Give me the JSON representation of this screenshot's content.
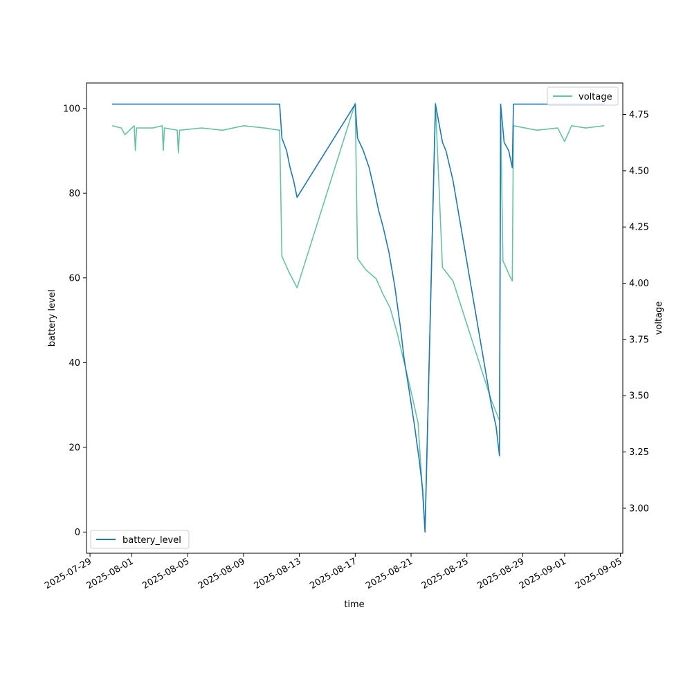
{
  "chart_data": {
    "type": "line",
    "xlabel": "time",
    "ylabel_left": "battery level",
    "ylabel_right": "voltage",
    "xlim": [
      "2025-07-28T18:00",
      "2025-09-05T04:00"
    ],
    "ylim_left": [
      -5,
      106
    ],
    "ylim_right": [
      2.8,
      4.89
    ],
    "x_ticks": [
      "2025-07-29",
      "2025-08-01",
      "2025-08-05",
      "2025-08-09",
      "2025-08-13",
      "2025-08-17",
      "2025-08-21",
      "2025-08-25",
      "2025-08-29",
      "2025-09-01",
      "2025-09-05"
    ],
    "y_ticks_left": [
      0,
      20,
      40,
      60,
      80,
      100
    ],
    "y_ticks_right": [
      "3.00",
      "3.25",
      "3.50",
      "3.75",
      "4.00",
      "4.25",
      "4.50",
      "4.75"
    ],
    "legend_left": {
      "label": "battery_level",
      "placement": "lower left"
    },
    "legend_right": {
      "label": "voltage",
      "placement": "upper right"
    },
    "colors": {
      "battery_level": "#1f77b4",
      "voltage": "#66c2a5"
    },
    "series": [
      {
        "name": "battery_level",
        "axis": "left",
        "points": [
          [
            "2025-07-30T14:00",
            101
          ],
          [
            "2025-08-11T14:00",
            101
          ],
          [
            "2025-08-11T18:00",
            93
          ],
          [
            "2025-08-12T02:00",
            90
          ],
          [
            "2025-08-12T08:00",
            86
          ],
          [
            "2025-08-12T14:00",
            83
          ],
          [
            "2025-08-12T20:00",
            79
          ],
          [
            "2025-08-17T00:00",
            101
          ],
          [
            "2025-08-17T04:00",
            93
          ],
          [
            "2025-08-17T14:00",
            90
          ],
          [
            "2025-08-18T00:00",
            86
          ],
          [
            "2025-08-18T10:00",
            80
          ],
          [
            "2025-08-18T16:00",
            76
          ],
          [
            "2025-08-19T00:00",
            72
          ],
          [
            "2025-08-19T10:00",
            66
          ],
          [
            "2025-08-19T20:00",
            58
          ],
          [
            "2025-08-20T06:00",
            48
          ],
          [
            "2025-08-20T12:00",
            41
          ],
          [
            "2025-08-20T20:00",
            34
          ],
          [
            "2025-08-21T06:00",
            25
          ],
          [
            "2025-08-21T14:00",
            17
          ],
          [
            "2025-08-21T20:00",
            10
          ],
          [
            "2025-08-22T00:00",
            0
          ],
          [
            "2025-08-22T18:00",
            101
          ],
          [
            "2025-08-23T06:00",
            92
          ],
          [
            "2025-08-23T12:00",
            90
          ],
          [
            "2025-08-24T00:00",
            83
          ],
          [
            "2025-08-26T18:00",
            30
          ],
          [
            "2025-08-27T02:00",
            25
          ],
          [
            "2025-08-27T08:00",
            18
          ],
          [
            "2025-08-27T10:00",
            101
          ],
          [
            "2025-08-27T16:00",
            92
          ],
          [
            "2025-08-28T00:00",
            90
          ],
          [
            "2025-08-28T06:00",
            86
          ],
          [
            "2025-08-28T08:00",
            101
          ],
          [
            "2025-09-03T20:00",
            101
          ]
        ]
      },
      {
        "name": "voltage",
        "axis": "right",
        "points": [
          [
            "2025-07-30T14:00",
            4.7
          ],
          [
            "2025-07-31T06:00",
            4.69
          ],
          [
            "2025-07-31T12:00",
            4.66
          ],
          [
            "2025-08-01T04:00",
            4.7
          ],
          [
            "2025-08-01T06:00",
            4.59
          ],
          [
            "2025-08-01T08:00",
            4.69
          ],
          [
            "2025-08-02T12:00",
            4.69
          ],
          [
            "2025-08-03T04:00",
            4.7
          ],
          [
            "2025-08-03T06:00",
            4.59
          ],
          [
            "2025-08-03T08:00",
            4.69
          ],
          [
            "2025-08-04T06:00",
            4.68
          ],
          [
            "2025-08-04T08:00",
            4.58
          ],
          [
            "2025-08-04T10:00",
            4.68
          ],
          [
            "2025-08-06T00:00",
            4.69
          ],
          [
            "2025-08-07T12:00",
            4.68
          ],
          [
            "2025-08-09T00:00",
            4.7
          ],
          [
            "2025-08-10T12:00",
            4.69
          ],
          [
            "2025-08-11T14:00",
            4.68
          ],
          [
            "2025-08-11T18:00",
            4.12
          ],
          [
            "2025-08-12T06:00",
            4.05
          ],
          [
            "2025-08-12T20:00",
            3.98
          ],
          [
            "2025-08-17T00:00",
            4.8
          ],
          [
            "2025-08-17T04:00",
            4.11
          ],
          [
            "2025-08-17T18:00",
            4.06
          ],
          [
            "2025-08-18T12:00",
            4.02
          ],
          [
            "2025-08-19T00:00",
            3.95
          ],
          [
            "2025-08-19T12:00",
            3.89
          ],
          [
            "2025-08-20T00:00",
            3.78
          ],
          [
            "2025-08-20T12:00",
            3.65
          ],
          [
            "2025-08-21T00:00",
            3.52
          ],
          [
            "2025-08-21T12:00",
            3.38
          ],
          [
            "2025-08-22T00:00",
            2.9
          ],
          [
            "2025-08-22T18:00",
            4.8
          ],
          [
            "2025-08-23T06:00",
            4.07
          ],
          [
            "2025-08-24T00:00",
            4.01
          ],
          [
            "2025-08-26T18:00",
            3.48
          ],
          [
            "2025-08-27T08:00",
            3.39
          ],
          [
            "2025-08-27T10:00",
            4.75
          ],
          [
            "2025-08-27T14:00",
            4.1
          ],
          [
            "2025-08-28T02:00",
            4.03
          ],
          [
            "2025-08-28T06:00",
            4.01
          ],
          [
            "2025-08-28T08:00",
            4.7
          ],
          [
            "2025-08-30T00:00",
            4.68
          ],
          [
            "2025-08-31T12:00",
            4.69
          ],
          [
            "2025-09-01T00:00",
            4.63
          ],
          [
            "2025-09-01T12:00",
            4.7
          ],
          [
            "2025-09-02T12:00",
            4.69
          ],
          [
            "2025-09-03T20:00",
            4.7
          ]
        ]
      }
    ]
  }
}
